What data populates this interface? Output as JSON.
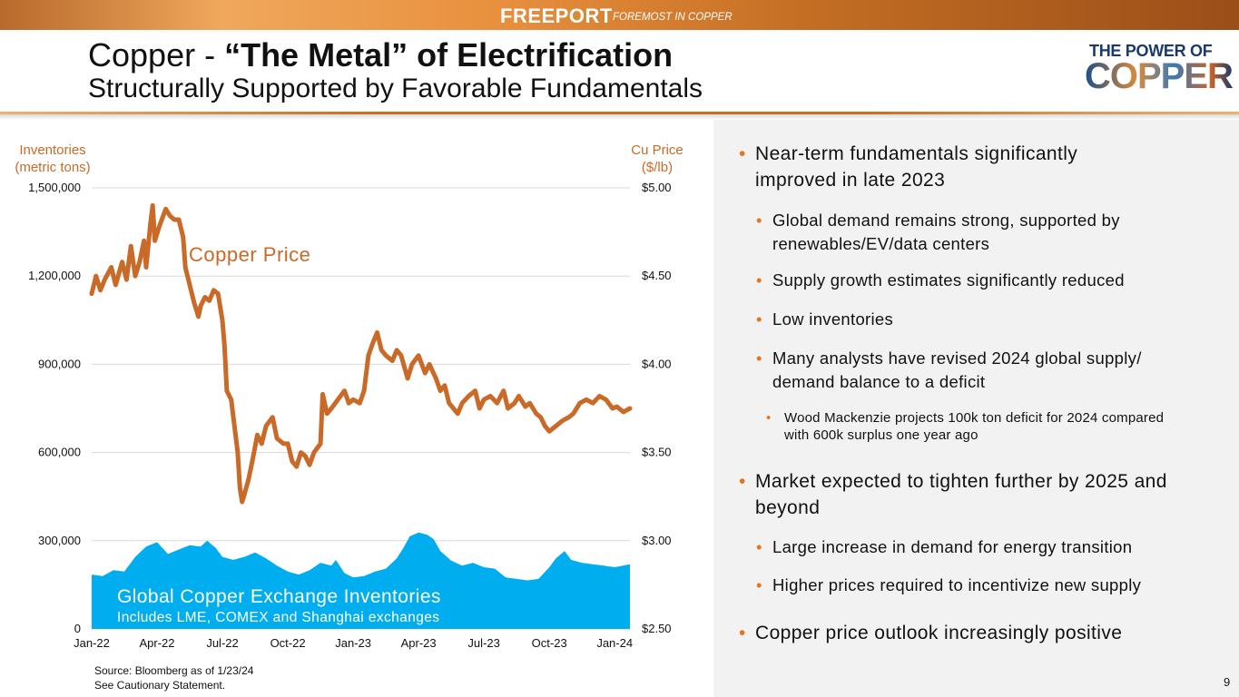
{
  "header": {
    "brand": "FREEPORT",
    "tagline": "FOREMOST IN COPPER"
  },
  "title": {
    "line1_prefix": "Copper - ",
    "line1_bold": "“The Metal” of Electrification",
    "line2": "Structurally Supported by Favorable Fundamentals"
  },
  "logo": {
    "line1": "THE POWER OF",
    "line2": "COPPER"
  },
  "colors": {
    "price_line": "#c96a28",
    "inventory_fill": "#00adee",
    "accent": "#e0781f"
  },
  "chart_data": {
    "type": "line+area",
    "left_axis": {
      "label_line1": "Inventories",
      "label_line2": "(metric tons)",
      "ticks": [
        "1,500,000",
        "1,200,000",
        "900,000",
        "600,000",
        "300,000",
        "0"
      ],
      "range": [
        0,
        1500000
      ]
    },
    "right_axis": {
      "label_line1": "Cu Price",
      "label_line2": "($/lb)",
      "ticks": [
        "$5.00",
        "$4.50",
        "$4.00",
        "$3.50",
        "$3.00",
        "$2.50"
      ],
      "range": [
        2.5,
        5.0
      ]
    },
    "x_ticks": [
      "Jan-22",
      "Apr-22",
      "Jul-22",
      "Oct-22",
      "Jan-23",
      "Apr-23",
      "Jul-23",
      "Oct-23",
      "Jan-24"
    ],
    "x_range_months": [
      0,
      24.7
    ],
    "price_label": "Copper Price",
    "inventory_label": "Global Copper Exchange Inventories",
    "inventory_sublabel": "Includes LME, COMEX and Shanghai exchanges",
    "series": [
      {
        "name": "Copper Price",
        "axis": "right",
        "points": [
          [
            0.0,
            4.4
          ],
          [
            0.2,
            4.5
          ],
          [
            0.4,
            4.42
          ],
          [
            0.6,
            4.48
          ],
          [
            0.9,
            4.55
          ],
          [
            1.1,
            4.45
          ],
          [
            1.4,
            4.58
          ],
          [
            1.6,
            4.48
          ],
          [
            1.8,
            4.67
          ],
          [
            2.0,
            4.5
          ],
          [
            2.2,
            4.58
          ],
          [
            2.4,
            4.7
          ],
          [
            2.5,
            4.55
          ],
          [
            2.7,
            4.8
          ],
          [
            2.8,
            4.9
          ],
          [
            2.9,
            4.7
          ],
          [
            3.1,
            4.78
          ],
          [
            3.4,
            4.88
          ],
          [
            3.6,
            4.84
          ],
          [
            3.8,
            4.82
          ],
          [
            4.0,
            4.82
          ],
          [
            4.2,
            4.72
          ],
          [
            4.3,
            4.55
          ],
          [
            4.5,
            4.45
          ],
          [
            4.7,
            4.35
          ],
          [
            4.9,
            4.27
          ],
          [
            5.0,
            4.33
          ],
          [
            5.2,
            4.38
          ],
          [
            5.4,
            4.36
          ],
          [
            5.6,
            4.42
          ],
          [
            5.8,
            4.4
          ],
          [
            6.0,
            4.25
          ],
          [
            6.1,
            4.1
          ],
          [
            6.2,
            3.85
          ],
          [
            6.4,
            3.8
          ],
          [
            6.6,
            3.6
          ],
          [
            6.7,
            3.5
          ],
          [
            6.8,
            3.3
          ],
          [
            6.9,
            3.22
          ],
          [
            7.0,
            3.26
          ],
          [
            7.2,
            3.35
          ],
          [
            7.4,
            3.47
          ],
          [
            7.6,
            3.6
          ],
          [
            7.8,
            3.55
          ],
          [
            8.0,
            3.65
          ],
          [
            8.3,
            3.7
          ],
          [
            8.5,
            3.58
          ],
          [
            8.8,
            3.55
          ],
          [
            9.0,
            3.55
          ],
          [
            9.2,
            3.45
          ],
          [
            9.4,
            3.42
          ],
          [
            9.6,
            3.5
          ],
          [
            9.8,
            3.48
          ],
          [
            10.0,
            3.43
          ],
          [
            10.2,
            3.5
          ],
          [
            10.5,
            3.55
          ],
          [
            10.6,
            3.83
          ],
          [
            10.8,
            3.72
          ],
          [
            11.0,
            3.75
          ],
          [
            11.3,
            3.8
          ],
          [
            11.6,
            3.85
          ],
          [
            11.8,
            3.78
          ],
          [
            12.0,
            3.8
          ],
          [
            12.3,
            3.78
          ],
          [
            12.5,
            3.85
          ],
          [
            12.7,
            4.05
          ],
          [
            12.9,
            4.12
          ],
          [
            13.1,
            4.18
          ],
          [
            13.3,
            4.08
          ],
          [
            13.5,
            4.05
          ],
          [
            13.8,
            4.02
          ],
          [
            14.0,
            4.08
          ],
          [
            14.2,
            4.05
          ],
          [
            14.5,
            3.92
          ],
          [
            14.7,
            4.0
          ],
          [
            15.0,
            4.05
          ],
          [
            15.3,
            3.95
          ],
          [
            15.5,
            4.0
          ],
          [
            15.8,
            3.92
          ],
          [
            16.0,
            3.85
          ],
          [
            16.2,
            3.88
          ],
          [
            16.4,
            3.78
          ],
          [
            16.6,
            3.75
          ],
          [
            16.8,
            3.72
          ],
          [
            17.0,
            3.78
          ],
          [
            17.3,
            3.82
          ],
          [
            17.6,
            3.85
          ],
          [
            17.8,
            3.75
          ],
          [
            18.0,
            3.8
          ],
          [
            18.3,
            3.82
          ],
          [
            18.6,
            3.78
          ],
          [
            18.9,
            3.85
          ],
          [
            19.1,
            3.75
          ],
          [
            19.4,
            3.78
          ],
          [
            19.6,
            3.82
          ],
          [
            19.9,
            3.76
          ],
          [
            20.1,
            3.78
          ],
          [
            20.4,
            3.72
          ],
          [
            20.6,
            3.7
          ],
          [
            20.8,
            3.65
          ],
          [
            21.0,
            3.62
          ],
          [
            21.3,
            3.65
          ],
          [
            21.6,
            3.68
          ],
          [
            21.9,
            3.7
          ],
          [
            22.1,
            3.72
          ],
          [
            22.4,
            3.78
          ],
          [
            22.7,
            3.8
          ],
          [
            23.0,
            3.78
          ],
          [
            23.3,
            3.82
          ],
          [
            23.6,
            3.8
          ],
          [
            23.9,
            3.75
          ],
          [
            24.1,
            3.76
          ],
          [
            24.4,
            3.73
          ],
          [
            24.7,
            3.75
          ]
        ]
      },
      {
        "name": "Global Copper Exchange Inventories",
        "axis": "left",
        "points": [
          [
            0.0,
            185000
          ],
          [
            0.5,
            180000
          ],
          [
            1.0,
            200000
          ],
          [
            1.5,
            195000
          ],
          [
            2.0,
            245000
          ],
          [
            2.5,
            280000
          ],
          [
            3.0,
            295000
          ],
          [
            3.5,
            255000
          ],
          [
            4.0,
            270000
          ],
          [
            4.5,
            285000
          ],
          [
            5.0,
            280000
          ],
          [
            5.3,
            300000
          ],
          [
            5.7,
            275000
          ],
          [
            6.0,
            245000
          ],
          [
            6.5,
            235000
          ],
          [
            7.0,
            245000
          ],
          [
            7.5,
            260000
          ],
          [
            8.0,
            240000
          ],
          [
            8.5,
            215000
          ],
          [
            9.0,
            195000
          ],
          [
            9.5,
            185000
          ],
          [
            10.0,
            200000
          ],
          [
            10.5,
            225000
          ],
          [
            11.0,
            215000
          ],
          [
            11.2,
            235000
          ],
          [
            11.6,
            190000
          ],
          [
            12.0,
            175000
          ],
          [
            12.5,
            180000
          ],
          [
            13.0,
            195000
          ],
          [
            13.5,
            205000
          ],
          [
            14.0,
            240000
          ],
          [
            14.3,
            275000
          ],
          [
            14.6,
            315000
          ],
          [
            15.0,
            328000
          ],
          [
            15.4,
            320000
          ],
          [
            15.7,
            305000
          ],
          [
            16.0,
            265000
          ],
          [
            16.5,
            232000
          ],
          [
            17.0,
            215000
          ],
          [
            17.5,
            225000
          ],
          [
            18.0,
            210000
          ],
          [
            18.5,
            205000
          ],
          [
            19.0,
            175000
          ],
          [
            19.5,
            170000
          ],
          [
            20.0,
            165000
          ],
          [
            20.5,
            170000
          ],
          [
            21.0,
            210000
          ],
          [
            21.3,
            240000
          ],
          [
            21.7,
            265000
          ],
          [
            22.0,
            235000
          ],
          [
            22.5,
            225000
          ],
          [
            23.0,
            220000
          ],
          [
            23.5,
            215000
          ],
          [
            24.0,
            210000
          ],
          [
            24.7,
            220000
          ]
        ]
      }
    ]
  },
  "bullets": [
    {
      "level": 1,
      "text": "Near-term fundamentals significantly improved in late 2023"
    },
    {
      "level": 2,
      "text": "Global demand remains strong, supported by renewables/EV/data centers"
    },
    {
      "level": 2,
      "text": "Supply growth estimates significantly reduced"
    },
    {
      "level": 2,
      "text": "Low inventories"
    },
    {
      "level": 2,
      "text": "Many analysts have revised 2024 global supply/ demand balance to a deficit"
    },
    {
      "level": 3,
      "text": "Wood Mackenzie projects 100k ton deficit for 2024 compared with 600k surplus one year ago"
    },
    {
      "level": 1,
      "text": "Market expected to tighten further by 2025 and beyond"
    },
    {
      "level": 2,
      "text": "Large increase in demand for energy transition"
    },
    {
      "level": 2,
      "text": "Higher prices required to incentivize new supply"
    },
    {
      "level": 1,
      "text": "Copper price outlook increasingly positive"
    }
  ],
  "footer": {
    "source": "Source: Bloomberg as of 1/23/24",
    "cautionary": "See Cautionary Statement.",
    "page": "9"
  }
}
